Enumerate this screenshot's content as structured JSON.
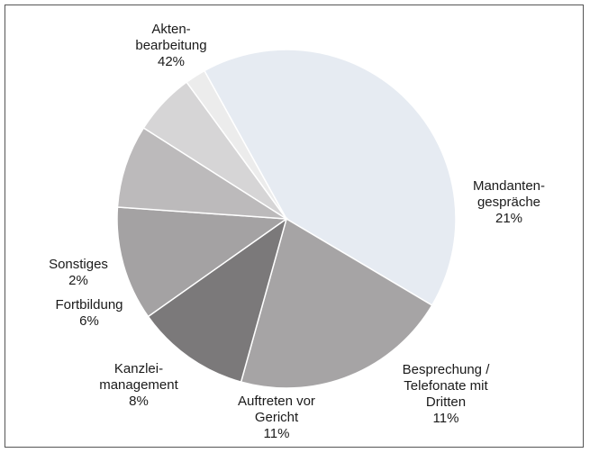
{
  "chart_data": {
    "type": "pie",
    "slices": [
      {
        "label_lines": [
          "Akten-",
          "bearbeitung"
        ],
        "value_label": "42%",
        "value": 42,
        "color": "#e6ebf2"
      },
      {
        "label_lines": [
          "Mandanten-",
          "gespräche"
        ],
        "value_label": "21%",
        "value": 21,
        "color": "#a6a4a5"
      },
      {
        "label_lines": [
          "Besprechung /",
          "Telefonate mit",
          "Dritten"
        ],
        "value_label": "11%",
        "value": 11,
        "color": "#7b797a"
      },
      {
        "label_lines": [
          "Auftreten vor",
          "Gericht"
        ],
        "value_label": "11%",
        "value": 11,
        "color": "#a4a2a3"
      },
      {
        "label_lines": [
          "Kanzlei-",
          "management"
        ],
        "value_label": "8%",
        "value": 8,
        "color": "#bcbabb"
      },
      {
        "label_lines": [
          "Fortbildung"
        ],
        "value_label": "6%",
        "value": 6,
        "color": "#d6d5d6"
      },
      {
        "label_lines": [
          "Sonstiges"
        ],
        "value_label": "2%",
        "value": 2,
        "color": "#ececec"
      }
    ]
  }
}
